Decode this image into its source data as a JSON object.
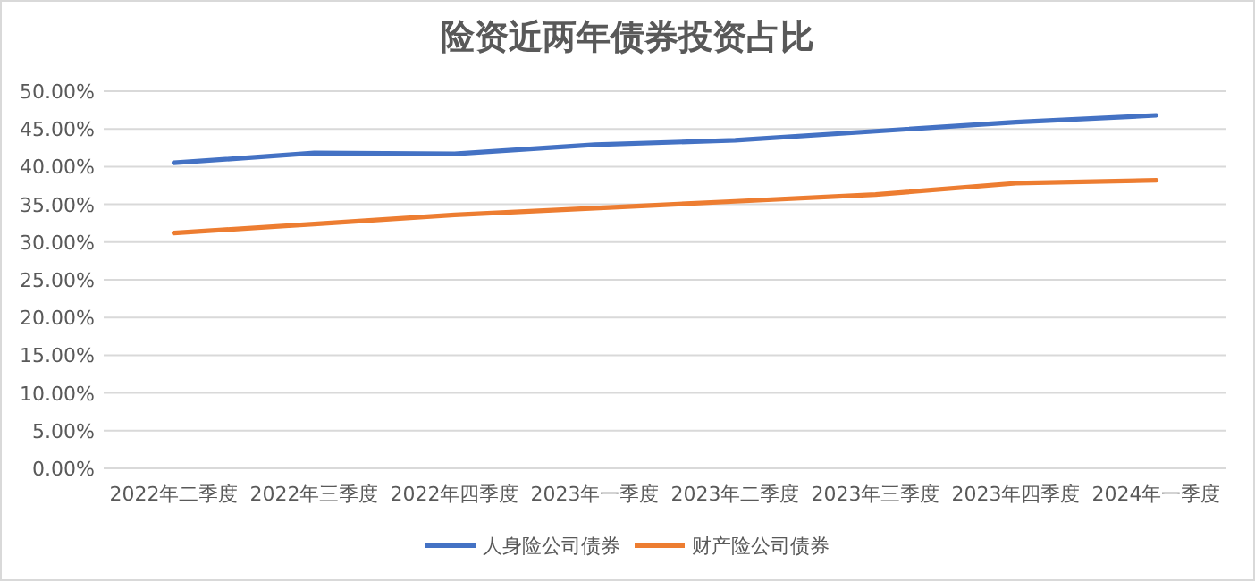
{
  "chart_data": {
    "type": "line",
    "title": "险资近两年债券投资占比",
    "categories": [
      "2022年二季度",
      "2022年三季度",
      "2022年四季度",
      "2023年一季度",
      "2023年二季度",
      "2023年三季度",
      "2023年四季度",
      "2024年一季度"
    ],
    "series": [
      {
        "name": "人身险公司债券",
        "color": "#4472c4",
        "values": [
          40.5,
          41.8,
          41.7,
          42.9,
          43.5,
          44.7,
          45.9,
          46.8
        ]
      },
      {
        "name": "财产险公司债券",
        "color": "#ed7d31",
        "values": [
          31.2,
          32.4,
          33.6,
          34.5,
          35.4,
          36.3,
          37.8,
          38.2
        ]
      }
    ],
    "ylim": [
      0,
      50
    ],
    "yticks": [
      {
        "value": 0,
        "label": "0.00%"
      },
      {
        "value": 5,
        "label": "5.00%"
      },
      {
        "value": 10,
        "label": "10.00%"
      },
      {
        "value": 15,
        "label": "15.00%"
      },
      {
        "value": 20,
        "label": "20.00%"
      },
      {
        "value": 25,
        "label": "25.00%"
      },
      {
        "value": 30,
        "label": "30.00%"
      },
      {
        "value": 35,
        "label": "35.00%"
      },
      {
        "value": 40,
        "label": "40.00%"
      },
      {
        "value": 45,
        "label": "45.00%"
      },
      {
        "value": 50,
        "label": "50.00%"
      }
    ],
    "grid": "y",
    "legend": "bottom",
    "marker": "none",
    "line_style": "solid"
  }
}
